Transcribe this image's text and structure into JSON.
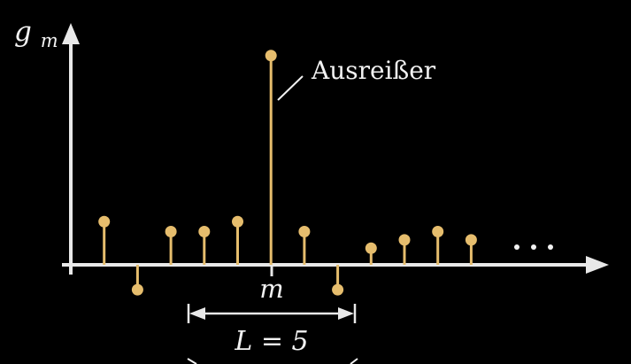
{
  "labels": {
    "y_axis_base": "g",
    "y_axis_sub": "m",
    "x_marker": "m",
    "outlier": "Ausreißer",
    "window": "L = 5"
  },
  "samples": [
    {
      "index": 1,
      "value": 1.3
    },
    {
      "index": 2,
      "value": -0.75
    },
    {
      "index": 3,
      "value": 1.0
    },
    {
      "index": 4,
      "value": 1.0
    },
    {
      "index": 5,
      "value": 1.3
    },
    {
      "index": 6,
      "value": 6.3
    },
    {
      "index": 7,
      "value": 1.0
    },
    {
      "index": 8,
      "value": -0.75
    },
    {
      "index": 9,
      "value": 0.5
    },
    {
      "index": 10,
      "value": 0.75
    },
    {
      "index": 11,
      "value": 1.0
    },
    {
      "index": 12,
      "value": 0.75
    }
  ],
  "outlier_index": 6,
  "window": {
    "length": 5,
    "start_index": 4,
    "end_index": 8
  },
  "colors": {
    "background": "#000000",
    "axis": "#e8e8e8",
    "stem": "#e6bd6d",
    "text": "#f2f2f2"
  },
  "continuation": "ellipsis-icon"
}
